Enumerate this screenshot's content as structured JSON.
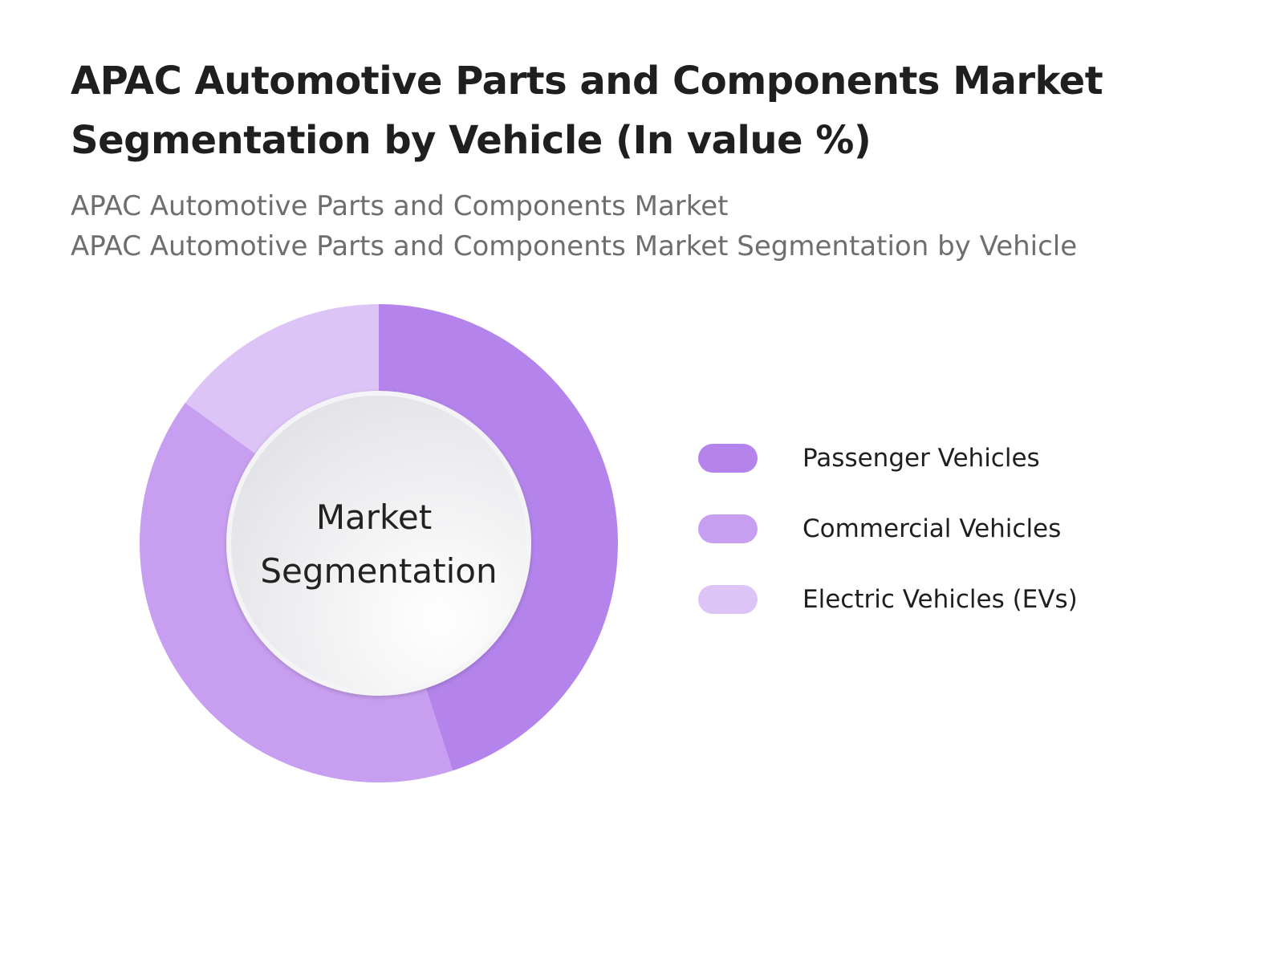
{
  "title": "APAC Automotive Parts and Components Market Segmentation by Vehicle (In value %)",
  "subtitle_lines": [
    "APAC Automotive Parts and Components Market",
    "APAC Automotive Parts and Components Market Segmentation by Vehicle"
  ],
  "center_label": [
    "Market",
    "Segmentation"
  ],
  "chart_data": {
    "type": "pie",
    "donut": true,
    "categories": [
      "Passenger Vehicles",
      "Commercial Vehicles",
      "Electric Vehicles (EVs)"
    ],
    "values": [
      45,
      40,
      15
    ],
    "colors": [
      "#b484ec",
      "#c89ff0",
      "#dcc4f7"
    ],
    "title": "APAC Automotive Parts and Components Market Segmentation by Vehicle (In value %)",
    "legend_position": "right",
    "start_angle": "top",
    "direction": "clockwise"
  }
}
